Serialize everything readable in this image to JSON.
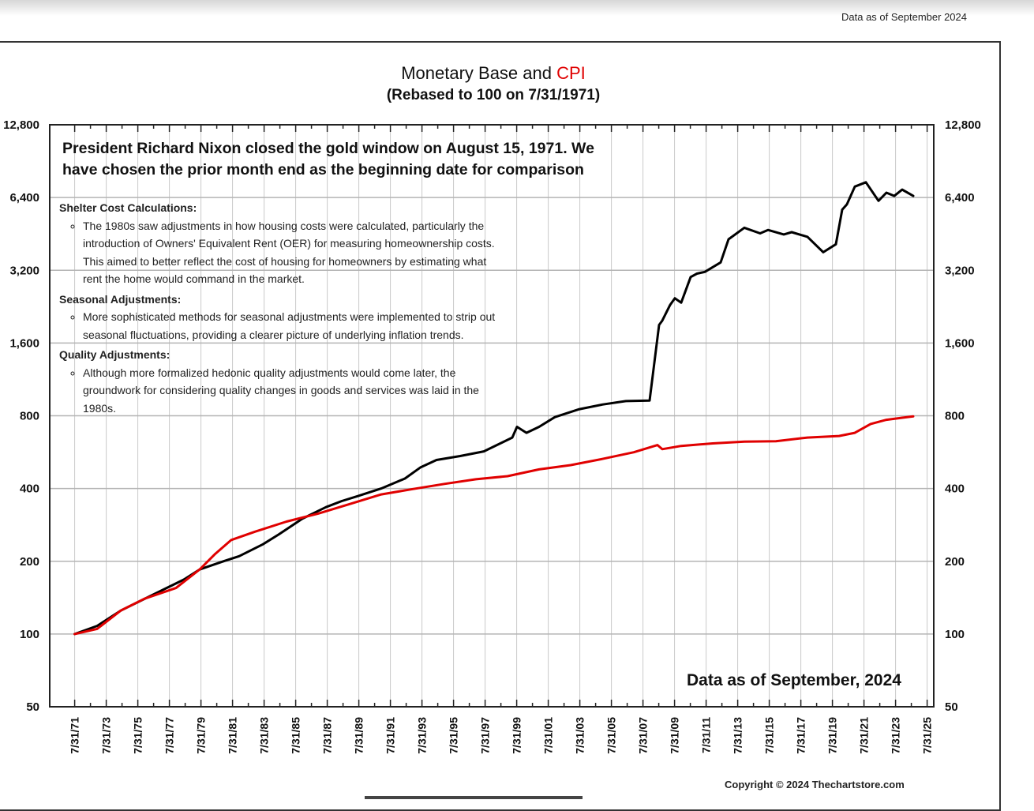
{
  "header": {
    "data_note": "Data as of September 2024"
  },
  "footer": {
    "copyright": "Copyright © 2024 Thechartstore.com"
  },
  "annotation": {
    "nixon_line1": "President Richard Nixon closed the gold window on August 15, 1971.  We",
    "nixon_line2": "have chosen the prior month end as the beginning date for comparison",
    "data_as_of": "Data as of September, 2024"
  },
  "notes": [
    {
      "heading": "Shelter Cost Calculations:",
      "text": "The 1980s saw adjustments in how housing costs were calculated, particularly the introduction of Owners' Equivalent Rent (OER) for measuring homeownership costs. This aimed to better reflect the cost of housing for homeowners by estimating what rent the home would command in the market."
    },
    {
      "heading": "Seasonal Adjustments:",
      "text": "More sophisticated methods for seasonal adjustments were implemented to strip out seasonal fluctuations, providing a clearer picture of underlying inflation trends."
    },
    {
      "heading": "Quality Adjustments:",
      "text": "Although more formalized hedonic quality adjustments would come later, the groundwork for considering quality changes in goods and services was laid in the 1980s."
    }
  ],
  "colors": {
    "monetary_base": "#000000",
    "cpi": "#e00000",
    "grid": "#c8c8c8"
  },
  "chart_data": {
    "type": "line",
    "title": "Monetary Base and CPI",
    "title_part1": "Monetary Base and ",
    "title_part2": "CPI",
    "subtitle": "(Rebased to 100 on 7/31/1971)",
    "y_scale": "log2",
    "ylim": [
      50,
      12800
    ],
    "y_ticks": [
      50,
      100,
      200,
      400,
      800,
      1600,
      3200,
      6400,
      12800
    ],
    "y_tick_labels": [
      "50",
      "100",
      "200",
      "400",
      "800",
      "1,600",
      "3,200",
      "6,400",
      "12,800"
    ],
    "xlim": [
      1970.0,
      2026.0
    ],
    "x_ticks": [
      1971.58,
      1973.58,
      1975.58,
      1977.58,
      1979.58,
      1981.58,
      1983.58,
      1985.58,
      1987.58,
      1989.58,
      1991.58,
      1993.58,
      1995.58,
      1997.58,
      1999.58,
      2001.58,
      2003.58,
      2005.58,
      2007.58,
      2009.58,
      2011.58,
      2013.58,
      2015.58,
      2017.58,
      2019.58,
      2021.58,
      2023.58,
      2025.58
    ],
    "x_tick_labels": [
      "7/31/71",
      "7/31/73",
      "7/31/75",
      "7/31/77",
      "7/31/79",
      "7/31/81",
      "7/31/83",
      "7/31/85",
      "7/31/87",
      "7/31/89",
      "7/31/91",
      "7/31/93",
      "7/31/95",
      "7/31/97",
      "7/31/99",
      "7/31/01",
      "7/31/03",
      "7/31/05",
      "7/31/07",
      "7/31/09",
      "7/31/11",
      "7/31/13",
      "7/31/15",
      "7/31/17",
      "7/31/19",
      "7/31/21",
      "7/31/23",
      "7/31/25"
    ],
    "series": [
      {
        "name": "Monetary Base",
        "color": "#000000",
        "x": [
          1971.58,
          1973.0,
          1974.5,
          1976.5,
          1978.5,
          1979.5,
          1981.0,
          1982.0,
          1983.5,
          1984.5,
          1986.0,
          1987.5,
          1988.5,
          1989.5,
          1991.0,
          1992.5,
          1993.5,
          1994.5,
          1996.0,
          1997.5,
          1999.3,
          1999.6,
          2000.2,
          2001.0,
          2002.0,
          2003.5,
          2005.0,
          2006.5,
          2008.0,
          2008.6,
          2008.8,
          2009.3,
          2009.6,
          2010.0,
          2010.6,
          2011.0,
          2011.5,
          2012.5,
          2013.0,
          2014.0,
          2015.0,
          2015.5,
          2016.5,
          2017.0,
          2018.0,
          2019.0,
          2019.8,
          2020.2,
          2020.5,
          2021.0,
          2021.7,
          2022.5,
          2023.0,
          2023.5,
          2024.0,
          2024.7
        ],
        "values": [
          100,
          108,
          125,
          145,
          168,
          185,
          200,
          210,
          235,
          258,
          300,
          335,
          355,
          372,
          400,
          440,
          490,
          525,
          545,
          570,
          650,
          720,
          680,
          720,
          790,
          850,
          890,
          920,
          925,
          1900,
          1980,
          2300,
          2450,
          2350,
          3000,
          3100,
          3150,
          3450,
          4300,
          4800,
          4550,
          4700,
          4500,
          4600,
          4400,
          3800,
          4100,
          5700,
          6000,
          7100,
          7400,
          6200,
          6700,
          6500,
          6900,
          6500
        ]
      },
      {
        "name": "CPI",
        "color": "#e00000",
        "x": [
          1971.58,
          1973.0,
          1974.5,
          1976.0,
          1978.0,
          1979.5,
          1980.5,
          1981.5,
          1983.0,
          1985.0,
          1987.0,
          1989.0,
          1991.0,
          1993.0,
          1995.0,
          1997.0,
          1999.0,
          2001.0,
          2003.0,
          2005.0,
          2007.0,
          2008.5,
          2008.8,
          2010.0,
          2012.0,
          2014.0,
          2016.0,
          2018.0,
          2020.0,
          2021.0,
          2022.0,
          2023.0,
          2024.0,
          2024.7
        ],
        "values": [
          100,
          105,
          125,
          140,
          155,
          185,
          215,
          245,
          265,
          292,
          315,
          345,
          378,
          398,
          418,
          437,
          450,
          480,
          500,
          530,
          565,
          605,
          582,
          600,
          615,
          625,
          628,
          650,
          660,
          680,
          740,
          770,
          785,
          795
        ]
      }
    ]
  }
}
